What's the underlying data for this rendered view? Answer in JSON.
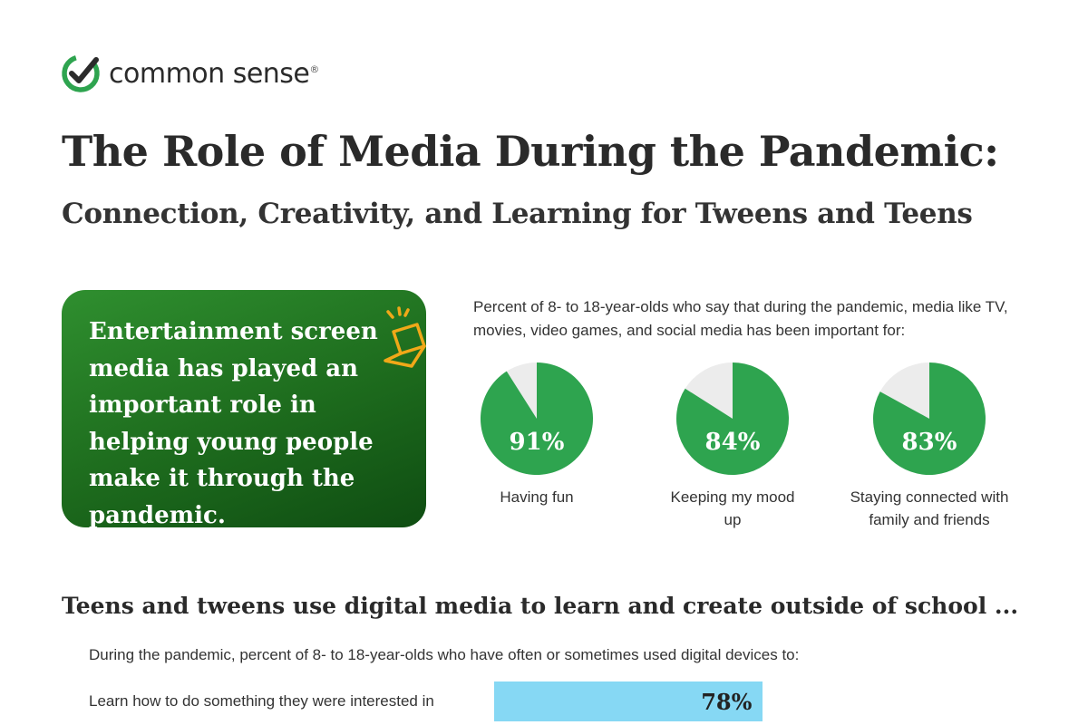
{
  "brand": {
    "name": "common sense",
    "registered": "®"
  },
  "title": "The Role of Media During the Pandemic:",
  "subtitle": "Connection, Creativity, and Learning for Tweens and Teens",
  "callout": {
    "text": "Entertainment screen media has played an important role in helping young people make it through the pandemic.",
    "icon": "laptop-icon"
  },
  "colors": {
    "pie_green": "#2ea44f",
    "pie_gray": "#ececec",
    "bar_blue": "#86d8f4",
    "callout_green": "#1d6b1d",
    "icon_orange": "#f0a818"
  },
  "chart_data": [
    {
      "type": "pie",
      "title": "Percent of 8- to 18-year-olds who say that during the pandemic, media like TV, movies, video games, and social media has been important for:",
      "items": [
        {
          "label": "Having fun",
          "value": 91,
          "value_label": "91%"
        },
        {
          "label": "Keeping my mood up",
          "value": 84,
          "value_label": "84%"
        },
        {
          "label": "Staying connected with family and friends",
          "value": 83,
          "value_label": "83%"
        }
      ]
    },
    {
      "type": "bar",
      "section_title": "Teens and tweens use digital media to learn and create outside of school ...",
      "title": "During the pandemic, percent of 8- to 18-year-olds who have often or sometimes used digital devices to:",
      "categories": [
        "Learn how to do something they were interested in"
      ],
      "values": [
        78
      ],
      "value_labels": [
        "78%"
      ]
    }
  ]
}
